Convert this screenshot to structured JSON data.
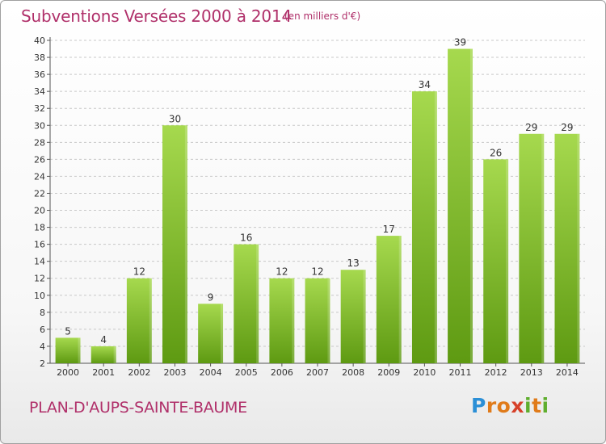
{
  "header": {
    "title": "Subventions Versées 2000 à 2014",
    "unit": "(en milliers d'€)"
  },
  "footer": {
    "commune": "PLAN-D'AUPS-SAINTE-BAUME",
    "logo_text": "Proxiti"
  },
  "colors": {
    "bar_light": "#a6d94e",
    "bar_dark": "#5e9a12",
    "title": "#b0306a"
  },
  "chart_data": {
    "type": "bar",
    "title": "Subventions Versées 2000 à 2014",
    "subtitle": "(en milliers d'€)",
    "xlabel": "",
    "ylabel": "",
    "categories": [
      "2000",
      "2001",
      "2002",
      "2003",
      "2004",
      "2005",
      "2006",
      "2007",
      "2008",
      "2009",
      "2010",
      "2011",
      "2012",
      "2013",
      "2014"
    ],
    "values": [
      5,
      4,
      12,
      30,
      9,
      16,
      12,
      12,
      13,
      17,
      34,
      39,
      26,
      29,
      29
    ],
    "ylim": [
      2,
      40
    ],
    "yticks": [
      2,
      4,
      6,
      8,
      10,
      12,
      14,
      16,
      18,
      20,
      22,
      24,
      26,
      28,
      30,
      32,
      34,
      36,
      38,
      40
    ],
    "grid": "horizontal dashed",
    "legend": "none"
  }
}
